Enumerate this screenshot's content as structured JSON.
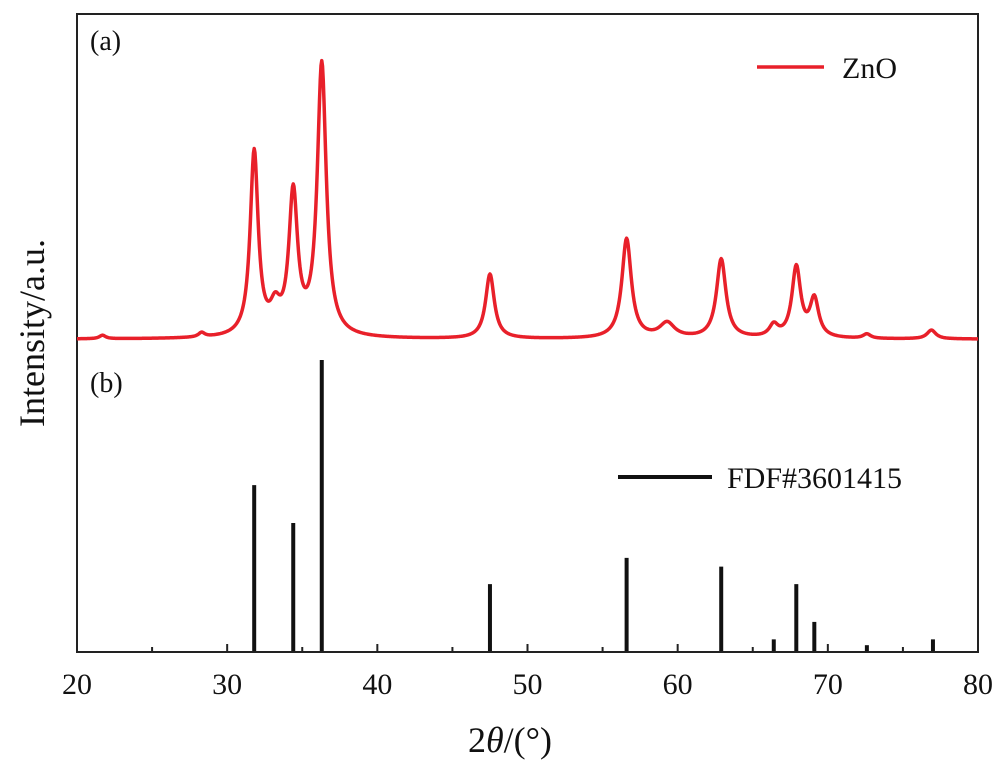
{
  "chart_data": {
    "type": "line",
    "xlabel_prefix": "2",
    "xlabel_symbol": "θ",
    "xlabel_suffix": "/(°)",
    "ylabel": "Intensity/a.u.",
    "xlim": [
      20,
      80
    ],
    "xticks": [
      20,
      30,
      40,
      50,
      60,
      70,
      80
    ],
    "grid": false,
    "panels": [
      {
        "label": "(a)",
        "type": "line",
        "legend": {
          "name": "ZnO",
          "placement": "top-right"
        },
        "color": "#e8202a",
        "baseline": 0.03,
        "peaks": [
          {
            "x": 21.7,
            "h": 0.012,
            "w": 0.25
          },
          {
            "x": 28.3,
            "h": 0.015,
            "w": 0.25
          },
          {
            "x": 31.8,
            "h": 0.63,
            "w": 0.32
          },
          {
            "x": 33.2,
            "h": 0.08,
            "w": 0.4
          },
          {
            "x": 34.4,
            "h": 0.48,
            "w": 0.35
          },
          {
            "x": 36.3,
            "h": 0.93,
            "w": 0.36
          },
          {
            "x": 47.5,
            "h": 0.22,
            "w": 0.35
          },
          {
            "x": 56.6,
            "h": 0.34,
            "w": 0.38
          },
          {
            "x": 59.3,
            "h": 0.05,
            "w": 0.6
          },
          {
            "x": 62.9,
            "h": 0.27,
            "w": 0.38
          },
          {
            "x": 66.4,
            "h": 0.04,
            "w": 0.35
          },
          {
            "x": 67.9,
            "h": 0.24,
            "w": 0.35
          },
          {
            "x": 69.1,
            "h": 0.13,
            "w": 0.35
          },
          {
            "x": 72.6,
            "h": 0.015,
            "w": 0.3
          },
          {
            "x": 76.9,
            "h": 0.03,
            "w": 0.35
          }
        ]
      },
      {
        "label": "(b)",
        "type": "bar",
        "legend": {
          "name": "FDF#3601415",
          "placement": "center-right"
        },
        "color": "#111111",
        "x": [
          31.8,
          34.4,
          36.3,
          47.5,
          56.6,
          62.9,
          66.4,
          67.9,
          69.1,
          72.6,
          77.0
        ],
        "values": [
          57,
          44,
          100,
          23,
          32,
          29,
          4,
          23,
          10,
          2,
          4
        ]
      }
    ]
  }
}
